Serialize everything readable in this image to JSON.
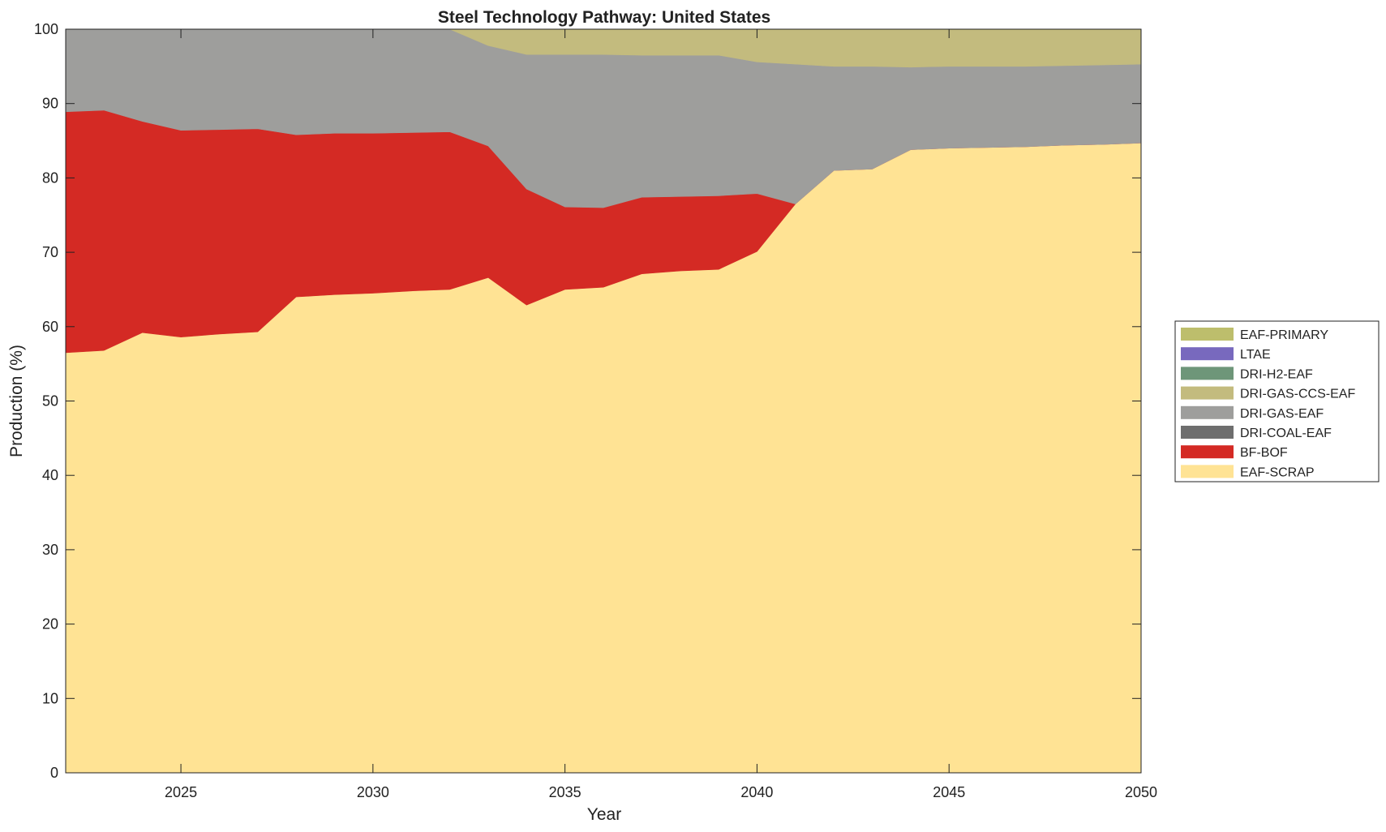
{
  "chart_data": {
    "type": "area",
    "stacked": true,
    "title": "Steel Technology Pathway: United States",
    "xlabel": "Year",
    "ylabel": "Production (%)",
    "xlim": [
      2022,
      2050
    ],
    "ylim": [
      0,
      100
    ],
    "x_ticks": [
      2025,
      2030,
      2035,
      2040,
      2045,
      2050
    ],
    "y_ticks": [
      0,
      10,
      20,
      30,
      40,
      50,
      60,
      70,
      80,
      90,
      100
    ],
    "grid": false,
    "legend_position": "right",
    "x": [
      2022,
      2023,
      2024,
      2025,
      2026,
      2027,
      2028,
      2029,
      2030,
      2031,
      2032,
      2033,
      2034,
      2035,
      2036,
      2037,
      2038,
      2039,
      2040,
      2041,
      2042,
      2043,
      2044,
      2045,
      2046,
      2047,
      2048,
      2049,
      2050
    ],
    "series": [
      {
        "name": "EAF-SCRAP",
        "color": "#FFE394",
        "values": [
          56.5,
          56.8,
          59.2,
          58.6,
          59.0,
          59.3,
          64.0,
          64.3,
          64.5,
          64.8,
          65.0,
          66.6,
          62.9,
          65.0,
          65.3,
          67.1,
          67.5,
          67.7,
          70.1,
          76.5,
          81.0,
          81.2,
          83.8,
          84.0,
          84.1,
          84.2,
          84.4,
          84.5,
          84.7
        ]
      },
      {
        "name": "BF-BOF",
        "color": "#D42A24",
        "values": [
          32.4,
          32.3,
          28.4,
          27.8,
          27.5,
          27.3,
          21.8,
          21.7,
          21.5,
          21.3,
          21.2,
          17.7,
          15.6,
          11.1,
          10.7,
          10.3,
          10.0,
          9.9,
          7.8,
          0,
          0,
          0,
          0,
          0,
          0,
          0,
          0,
          0,
          0
        ]
      },
      {
        "name": "DRI-COAL-EAF",
        "color": "#6E6E6E",
        "values": [
          0,
          0,
          0,
          0,
          0,
          0,
          0,
          0,
          0,
          0,
          0,
          0,
          0,
          0,
          0,
          0,
          0,
          0,
          0,
          0,
          0,
          0,
          0,
          0,
          0,
          0,
          0,
          0,
          0
        ]
      },
      {
        "name": "DRI-GAS-EAF",
        "color": "#9E9E9C",
        "values": [
          11.1,
          10.9,
          12.4,
          13.6,
          13.5,
          13.4,
          14.2,
          14.0,
          14.0,
          13.9,
          13.8,
          13.5,
          18.1,
          20.5,
          20.6,
          19.1,
          19.0,
          18.9,
          17.7,
          18.8,
          14.0,
          13.8,
          11.1,
          11.0,
          10.9,
          10.8,
          10.7,
          10.7,
          10.6
        ]
      },
      {
        "name": "DRI-GAS-CCS-EAF",
        "color": "#C3BB7E",
        "values": [
          0,
          0,
          0,
          0,
          0,
          0,
          0,
          0,
          0,
          0,
          0,
          2.2,
          3.4,
          3.4,
          3.4,
          3.5,
          3.5,
          3.5,
          4.4,
          4.7,
          5.0,
          5.0,
          5.1,
          5.0,
          5.0,
          5.0,
          4.9,
          4.8,
          4.7
        ]
      },
      {
        "name": "DRI-H2-EAF",
        "color": "#6E9679",
        "values": [
          0,
          0,
          0,
          0,
          0,
          0,
          0,
          0,
          0,
          0,
          0,
          0,
          0,
          0,
          0,
          0,
          0,
          0,
          0,
          0,
          0,
          0,
          0,
          0,
          0,
          0,
          0,
          0,
          0
        ]
      },
      {
        "name": "LTAE",
        "color": "#7869BE",
        "values": [
          0,
          0,
          0,
          0,
          0,
          0,
          0,
          0,
          0,
          0,
          0,
          0,
          0,
          0,
          0,
          0,
          0,
          0,
          0,
          0,
          0,
          0,
          0,
          0,
          0,
          0,
          0,
          0,
          0
        ]
      },
      {
        "name": "EAF-PRIMARY",
        "color": "#BDBE6C",
        "values": [
          0,
          0,
          0,
          0,
          0,
          0,
          0,
          0,
          0,
          0,
          0,
          0,
          0,
          0,
          0,
          0,
          0,
          0,
          0,
          0,
          0,
          0,
          0,
          0,
          0,
          0,
          0,
          0,
          0
        ]
      }
    ],
    "legend_order": [
      "EAF-PRIMARY",
      "LTAE",
      "DRI-H2-EAF",
      "DRI-GAS-CCS-EAF",
      "DRI-GAS-EAF",
      "DRI-COAL-EAF",
      "BF-BOF",
      "EAF-SCRAP"
    ]
  }
}
